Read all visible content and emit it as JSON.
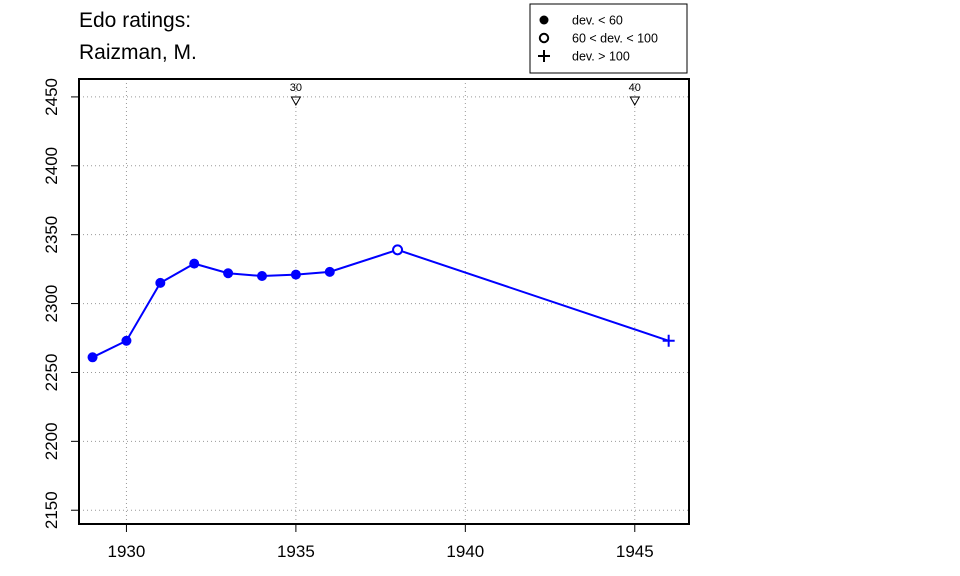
{
  "chart_data": {
    "type": "line",
    "title_lines": [
      "Edo ratings:",
      "Raizman, M."
    ],
    "xlabel": "",
    "ylabel": "",
    "xlim": [
      1928.6,
      1946.6
    ],
    "ylim": [
      2140,
      2463
    ],
    "xticks": [
      1930,
      1935,
      1940,
      1945
    ],
    "yticks": [
      2150,
      2200,
      2250,
      2300,
      2350,
      2400,
      2450
    ],
    "grid": true,
    "line_color": "#0000ff",
    "series": [
      {
        "points": [
          {
            "x": 1929,
            "y": 2261,
            "dev": "low"
          },
          {
            "x": 1930,
            "y": 2273,
            "dev": "low"
          },
          {
            "x": 1931,
            "y": 2315,
            "dev": "low"
          },
          {
            "x": 1932,
            "y": 2329,
            "dev": "low"
          },
          {
            "x": 1933,
            "y": 2322,
            "dev": "low"
          },
          {
            "x": 1934,
            "y": 2320,
            "dev": "low"
          },
          {
            "x": 1935,
            "y": 2321,
            "dev": "low"
          },
          {
            "x": 1936,
            "y": 2323,
            "dev": "low"
          },
          {
            "x": 1938,
            "y": 2339,
            "dev": "mid"
          },
          {
            "x": 1946,
            "y": 2273,
            "dev": "high"
          }
        ]
      }
    ],
    "age_markers": [
      {
        "x": 1935,
        "label": "30"
      },
      {
        "x": 1945,
        "label": "40"
      }
    ],
    "legend": {
      "position": "top-right",
      "entries": [
        {
          "symbol": "filled-circle",
          "label": "dev. < 60"
        },
        {
          "symbol": "open-circle",
          "label": "60 < dev. < 100"
        },
        {
          "symbol": "plus",
          "label": "dev. > 100"
        }
      ]
    }
  }
}
